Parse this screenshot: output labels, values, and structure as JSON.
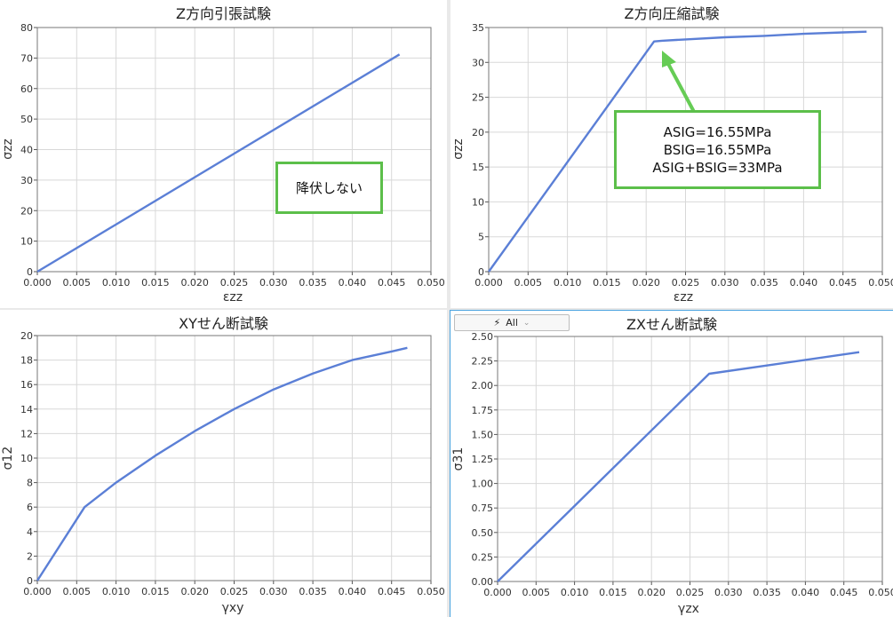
{
  "colors": {
    "series": "#5b7fd6",
    "grid": "#d8d8d8",
    "annotation_border": "#5cbf4a",
    "annotation_arrow": "#66cc55"
  },
  "filter": {
    "icon": "lightning-icon",
    "label": "All"
  },
  "chart_data": [
    {
      "type": "line",
      "title": "Z方向引張試験",
      "xlabel": "εzz",
      "ylabel": "σzz",
      "xlim": [
        0,
        0.05
      ],
      "ylim": [
        0,
        80
      ],
      "x_ticks": [
        "0.000",
        "0.005",
        "0.010",
        "0.015",
        "0.020",
        "0.025",
        "0.030",
        "0.035",
        "0.040",
        "0.045",
        "0.050"
      ],
      "y_ticks": [
        "0",
        "10",
        "20",
        "30",
        "40",
        "50",
        "60",
        "70",
        "80"
      ],
      "grid": true,
      "series": [
        {
          "x": [
            0,
            0.046
          ],
          "y": [
            0,
            71.2
          ]
        }
      ],
      "annotation": {
        "lines": [
          "降伏しない"
        ]
      }
    },
    {
      "type": "line",
      "title": "Z方向圧縮試験",
      "xlabel": "εzz",
      "ylabel": "σzz",
      "xlim": [
        0,
        0.05
      ],
      "ylim": [
        0,
        35
      ],
      "x_ticks": [
        "0.000",
        "0.005",
        "0.010",
        "0.015",
        "0.020",
        "0.025",
        "0.030",
        "0.035",
        "0.040",
        "0.045",
        "0.050"
      ],
      "y_ticks": [
        "0",
        "5",
        "10",
        "15",
        "20",
        "25",
        "30",
        "35"
      ],
      "grid": true,
      "series": [
        {
          "x": [
            0,
            0.021,
            0.022,
            0.025,
            0.03,
            0.035,
            0.04,
            0.045,
            0.048
          ],
          "y": [
            0,
            33.0,
            33.1,
            33.3,
            33.6,
            33.8,
            34.1,
            34.3,
            34.4
          ]
        }
      ],
      "annotation": {
        "lines": [
          "ASIG=16.55MPa",
          "BSIG=16.55MPa",
          "ASIG+BSIG=33MPa"
        ]
      }
    },
    {
      "type": "line",
      "title": "XYせん断試験",
      "xlabel": "γxy",
      "ylabel": "σ12",
      "xlim": [
        0,
        0.05
      ],
      "ylim": [
        0,
        20
      ],
      "x_ticks": [
        "0.000",
        "0.005",
        "0.010",
        "0.015",
        "0.020",
        "0.025",
        "0.030",
        "0.035",
        "0.040",
        "0.045",
        "0.050"
      ],
      "y_ticks": [
        "0",
        "2",
        "4",
        "6",
        "8",
        "10",
        "12",
        "14",
        "16",
        "18",
        "20"
      ],
      "grid": true,
      "series": [
        {
          "x": [
            0,
            0.006,
            0.01,
            0.015,
            0.02,
            0.025,
            0.03,
            0.035,
            0.04,
            0.045,
            0.047
          ],
          "y": [
            0,
            6.0,
            8.0,
            10.2,
            12.2,
            14.0,
            15.6,
            16.9,
            18.0,
            18.7,
            19.0
          ]
        }
      ]
    },
    {
      "type": "line",
      "title": "ZXせん断試験",
      "xlabel": "γzx",
      "ylabel": "σ31",
      "xlim": [
        0,
        0.05
      ],
      "ylim": [
        0,
        2.5
      ],
      "x_ticks": [
        "0.000",
        "0.005",
        "0.010",
        "0.015",
        "0.020",
        "0.025",
        "0.030",
        "0.035",
        "0.040",
        "0.045",
        "0.050"
      ],
      "y_ticks": [
        "0.00",
        "0.25",
        "0.50",
        "0.75",
        "1.00",
        "1.25",
        "1.50",
        "1.75",
        "2.00",
        "2.25",
        "2.50"
      ],
      "grid": true,
      "series": [
        {
          "x": [
            0,
            0.0275,
            0.047
          ],
          "y": [
            0,
            2.12,
            2.34
          ]
        }
      ]
    }
  ]
}
